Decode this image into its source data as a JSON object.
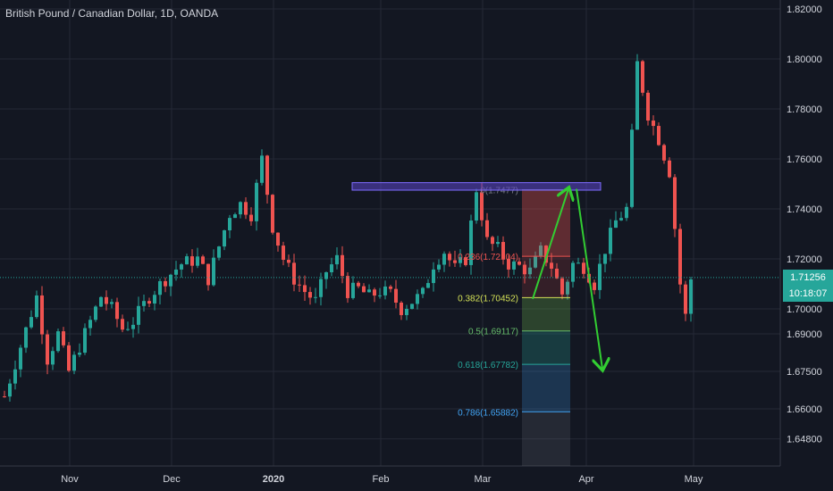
{
  "title": "British Pound / Canadian Dollar, 1D, OANDA",
  "colors": {
    "background": "#131722",
    "up": "#26a69a",
    "down": "#ef5350",
    "grid": "#242836",
    "axis_text": "#d1d4dc",
    "arrow": "#32cd32",
    "resistance_band": "#5b45c9"
  },
  "current_price": {
    "label": "1.71256",
    "value": 1.71256
  },
  "countdown": "10:18:07",
  "chart_data": {
    "type": "candlestick",
    "symbol": "GBPCAD",
    "timeframe": "1D",
    "x_labels": [
      "Nov",
      "Dec",
      "2020",
      "Feb",
      "Mar",
      "Apr",
      "May"
    ],
    "y_ticks": [
      "1.82000",
      "1.80000",
      "1.78000",
      "1.76000",
      "1.74000",
      "1.72000",
      "1.70000",
      "1.69000",
      "1.67500",
      "1.66000",
      "1.64800"
    ],
    "y_tick_values": [
      1.82,
      1.8,
      1.78,
      1.76,
      1.74,
      1.72,
      1.7,
      1.69,
      1.675,
      1.66,
      1.648
    ],
    "ylim": [
      1.64,
      1.822
    ],
    "grid": true,
    "close_path": [
      [
        0,
        1.665
      ],
      [
        3,
        1.685
      ],
      [
        6,
        1.705
      ],
      [
        8,
        1.68
      ],
      [
        10,
        1.69
      ],
      [
        12,
        1.675
      ],
      [
        15,
        1.69
      ],
      [
        18,
        1.705
      ],
      [
        20,
        1.7
      ],
      [
        22,
        1.692
      ],
      [
        24,
        1.695
      ],
      [
        27,
        1.705
      ],
      [
        30,
        1.712
      ],
      [
        33,
        1.718
      ],
      [
        36,
        1.72
      ],
      [
        38,
        1.712
      ],
      [
        40,
        1.725
      ],
      [
        42,
        1.738
      ],
      [
        44,
        1.742
      ],
      [
        46,
        1.738
      ],
      [
        48,
        1.76
      ],
      [
        50,
        1.733
      ],
      [
        52,
        1.72
      ],
      [
        54,
        1.712
      ],
      [
        56,
        1.707
      ],
      [
        58,
        1.703
      ],
      [
        60,
        1.715
      ],
      [
        62,
        1.72
      ],
      [
        64,
        1.707
      ],
      [
        66,
        1.708
      ],
      [
        68,
        1.705
      ],
      [
        70,
        1.707
      ],
      [
        72,
        1.706
      ],
      [
        74,
        1.7
      ],
      [
        76,
        1.703
      ],
      [
        78,
        1.706
      ],
      [
        80,
        1.718
      ],
      [
        82,
        1.723
      ],
      [
        84,
        1.716
      ],
      [
        86,
        1.72
      ],
      [
        88,
        1.748
      ],
      [
        90,
        1.727
      ],
      [
        92,
        1.724
      ],
      [
        94,
        1.718
      ],
      [
        96,
        1.717
      ],
      [
        98,
        1.715
      ],
      [
        100,
        1.723
      ],
      [
        102,
        1.717
      ],
      [
        104,
        1.706
      ],
      [
        106,
        1.718
      ],
      [
        108,
        1.717
      ],
      [
        110,
        1.71
      ],
      [
        112,
        1.724
      ],
      [
        114,
        1.735
      ],
      [
        116,
        1.74
      ],
      [
        118,
        1.798
      ],
      [
        120,
        1.778
      ],
      [
        122,
        1.768
      ],
      [
        124,
        1.755
      ],
      [
        126,
        1.71
      ],
      [
        127,
        1.697
      ],
      [
        128,
        1.712
      ]
    ],
    "fib_levels": [
      {
        "label": "0(1.7477)",
        "ratio": 0,
        "price": 1.7477,
        "color": "#787b86"
      },
      {
        "label": "0.236(1.72104)",
        "ratio": 0.236,
        "price": 1.72104,
        "color": "#ef5350"
      },
      {
        "label": "0.382(1.70452)",
        "ratio": 0.382,
        "price": 1.70452,
        "color": "#d4e157"
      },
      {
        "label": "0.5(1.69117)",
        "ratio": 0.5,
        "price": 1.69117,
        "color": "#66bb6a"
      },
      {
        "label": "0.618(1.67782)",
        "ratio": 0.618,
        "price": 1.67782,
        "color": "#26a69a"
      },
      {
        "label": "0.786(1.65882)",
        "ratio": 0.786,
        "price": 1.65882,
        "color": "#42a5f5"
      }
    ],
    "resistance_zone": [
      1.7475,
      1.7505
    ],
    "projection": {
      "from_price": 1.704,
      "peak_price": 1.748,
      "target_price": 1.676
    }
  }
}
